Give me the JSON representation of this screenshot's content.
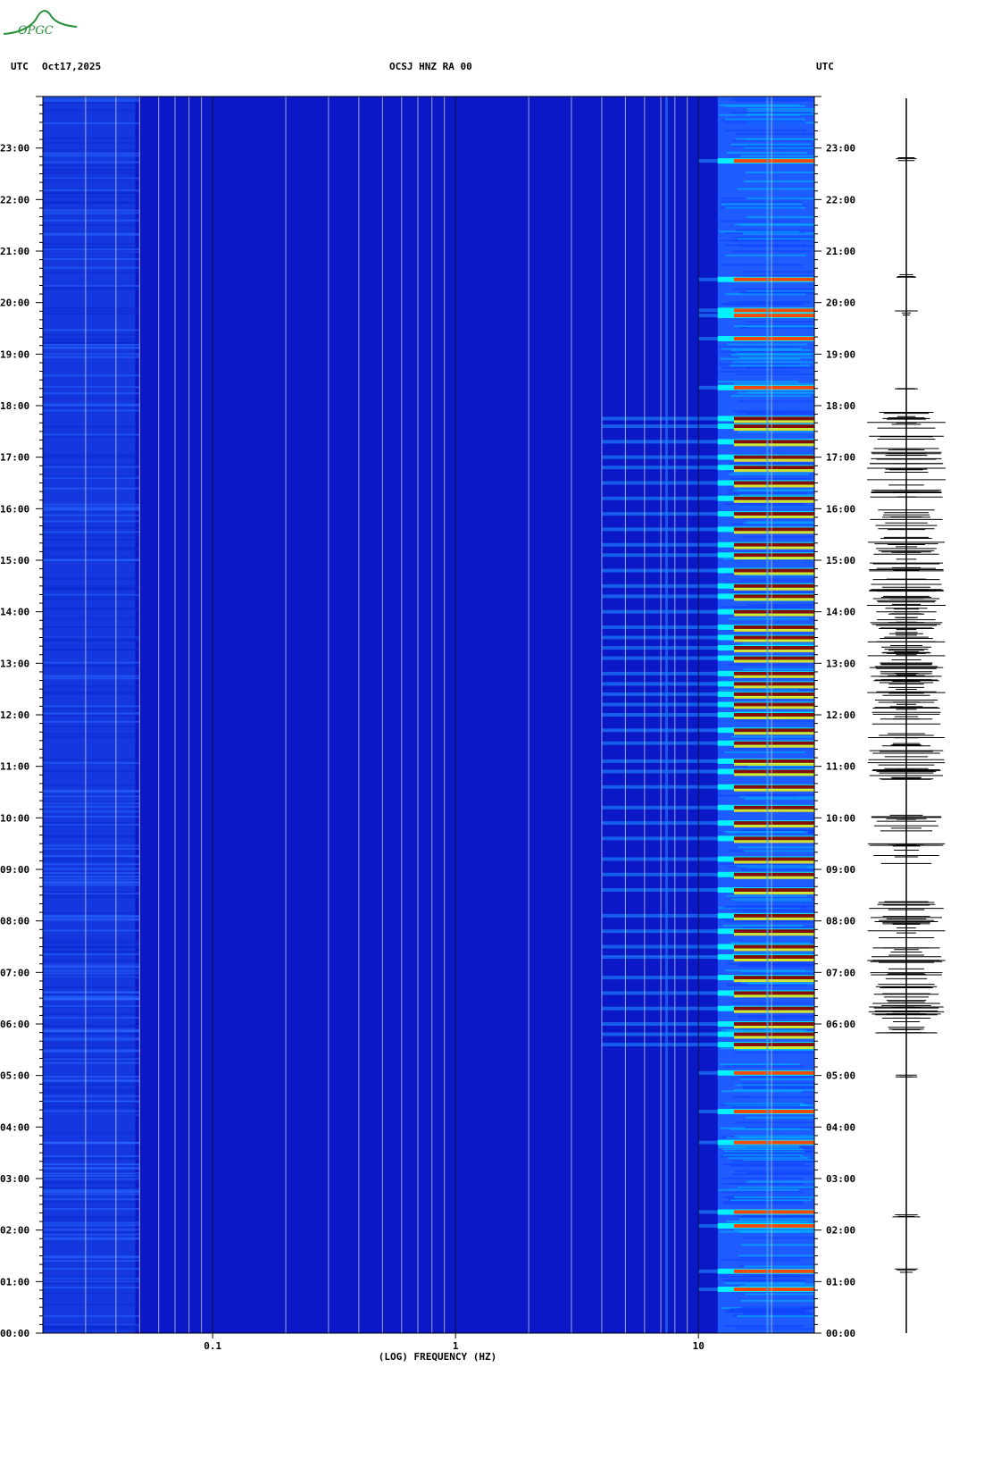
{
  "header": {
    "left_tz": "UTC",
    "date": "Oct17,2025",
    "station": "OCSJ HNZ RA 00",
    "right_tz": "UTC"
  },
  "logo": {
    "text": "OPGC",
    "color": "#2a8f3c"
  },
  "chart_data": {
    "type": "heatmap",
    "title": "",
    "xlabel": "(LOG) FREQUENCY (HZ)",
    "ylabel": "",
    "x_scale": "log",
    "x_ticks": [
      0.1,
      1,
      10
    ],
    "x_tick_labels": [
      "0.1",
      "1",
      "10"
    ],
    "xlim": [
      0.02,
      30
    ],
    "ylim_hours": [
      0,
      24
    ],
    "y_tick_labels": [
      "00:00",
      "01:00",
      "02:00",
      "03:00",
      "04:00",
      "05:00",
      "06:00",
      "07:00",
      "08:00",
      "09:00",
      "10:00",
      "11:00",
      "12:00",
      "13:00",
      "14:00",
      "15:00",
      "16:00",
      "17:00",
      "18:00",
      "19:00",
      "20:00",
      "21:00",
      "22:00",
      "23:00"
    ],
    "colormap": [
      "#00008b",
      "#0000ff",
      "#00aaff",
      "#00ffff",
      "#ffff00",
      "#ff4000",
      "#8b0000"
    ],
    "background_color": "#0a18c8",
    "high_energy_band_hz": [
      12,
      30
    ],
    "event_hours": [
      0.85,
      1.2,
      2.08,
      2.35,
      3.7,
      4.3,
      5.05,
      5.6,
      5.8,
      6.0,
      6.3,
      6.6,
      6.9,
      7.3,
      7.5,
      7.8,
      8.1,
      8.6,
      8.9,
      9.2,
      9.6,
      9.9,
      10.2,
      10.6,
      10.9,
      11.1,
      11.45,
      11.7,
      12.0,
      12.2,
      12.4,
      12.6,
      12.8,
      13.1,
      13.3,
      13.5,
      13.7,
      14.0,
      14.3,
      14.5,
      14.8,
      15.1,
      15.3,
      15.6,
      15.9,
      16.2,
      16.5,
      16.8,
      17.0,
      17.3,
      17.6,
      17.75,
      18.35,
      19.3,
      19.75,
      19.85,
      20.45,
      22.75
    ],
    "seismogram_events_hours": [
      1.2,
      2.3,
      5.0,
      6.0,
      6.2,
      6.4,
      6.9,
      7.3,
      7.8,
      8.2,
      9.3,
      9.9,
      10.9,
      11.1,
      11.5,
      12.0,
      12.3,
      12.6,
      12.8,
      13.1,
      13.4,
      13.7,
      14.0,
      14.3,
      14.5,
      15.0,
      15.3,
      15.8,
      16.4,
      16.9,
      17.2,
      17.7,
      18.3,
      19.8,
      20.5,
      22.8
    ]
  }
}
